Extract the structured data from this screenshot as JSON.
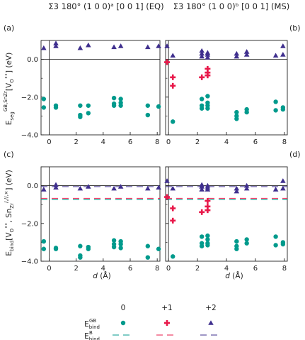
{
  "colors": {
    "teal": "#009a8c",
    "red": "#e8194a",
    "navy": "#3f2f8e",
    "axis": "#222222"
  },
  "column_titles": [
    "Σ3 180° (1 0 0)ᵃ [0 0 1] (EQ)",
    "Σ3 180° (1 0 0)ᵇ [0 0 1] (MS)"
  ],
  "panel_labels": [
    "(a)",
    "(b)",
    "(c)",
    "(d)"
  ],
  "legend": {
    "column_labels": [
      "0",
      "+1",
      "+2"
    ],
    "row_gb": "E_bind^GB",
    "row_b": "E_bind^B"
  },
  "chart_data": [
    {
      "id": "a",
      "type": "scatter",
      "xlabel": "",
      "ylabel": "E_seg^{GB,Sn_Zr}[V_O^••] (eV)",
      "xlim": [
        -0.6,
        8.2
      ],
      "ylim": [
        -4.0,
        1.0
      ],
      "xticks": [
        0,
        2,
        4,
        6,
        8
      ],
      "yticks": [
        0.0,
        -2.0,
        -4.0
      ],
      "ytick_labels": [
        "0.0",
        "−2.0",
        "−4.0"
      ],
      "zero_line": true,
      "series": [
        {
          "charge": "0",
          "points": [
            [
              -0.4,
              -2.1
            ],
            [
              -0.4,
              -2.55
            ],
            [
              0.5,
              -2.45
            ],
            [
              0.5,
              -2.55
            ],
            [
              2.3,
              -2.45
            ],
            [
              2.3,
              -2.95
            ],
            [
              2.3,
              -3.05
            ],
            [
              2.9,
              -2.45
            ],
            [
              2.9,
              -2.85
            ],
            [
              4.8,
              -2.05
            ],
            [
              4.8,
              -2.35
            ],
            [
              4.8,
              -2.45
            ],
            [
              5.3,
              -2.1
            ],
            [
              5.3,
              -2.3
            ],
            [
              5.3,
              -2.45
            ],
            [
              7.3,
              -2.45
            ],
            [
              7.3,
              -2.95
            ],
            [
              8.1,
              -2.5
            ]
          ]
        },
        {
          "charge": "+2",
          "points": [
            [
              -0.4,
              0.6
            ],
            [
              0.5,
              0.85
            ],
            [
              0.5,
              0.7
            ],
            [
              2.3,
              0.6
            ],
            [
              2.9,
              0.75
            ],
            [
              4.8,
              0.65
            ],
            [
              5.3,
              0.7
            ],
            [
              7.3,
              0.65
            ],
            [
              8.1,
              0.7
            ]
          ]
        }
      ],
      "bulk_lines": []
    },
    {
      "id": "b",
      "type": "scatter",
      "xlabel": "",
      "ylabel": "",
      "xlim": [
        -0.2,
        8.2
      ],
      "ylim": [
        -4.0,
        1.0
      ],
      "xticks": [
        0,
        2,
        4,
        6,
        8
      ],
      "yticks": [
        0.0,
        -2.0,
        -4.0
      ],
      "ytick_labels": [
        "",
        "",
        ""
      ],
      "zero_line": true,
      "series": [
        {
          "charge": "0",
          "points": [
            [
              0.3,
              -3.3
            ],
            [
              2.3,
              -2.1
            ],
            [
              2.3,
              -2.45
            ],
            [
              2.3,
              -2.6
            ],
            [
              2.7,
              -1.95
            ],
            [
              2.7,
              -2.3
            ],
            [
              2.7,
              -2.45
            ],
            [
              2.7,
              -2.6
            ],
            [
              4.7,
              -2.8
            ],
            [
              4.7,
              -3.0
            ],
            [
              4.7,
              -3.15
            ],
            [
              5.4,
              -2.65
            ],
            [
              5.4,
              -2.8
            ],
            [
              7.4,
              -2.25
            ],
            [
              7.4,
              -2.7
            ],
            [
              7.9,
              -2.55
            ],
            [
              7.9,
              -2.65
            ]
          ]
        },
        {
          "charge": "+1",
          "points": [
            [
              -0.1,
              -0.15
            ],
            [
              0.3,
              -0.95
            ],
            [
              0.3,
              -1.4
            ],
            [
              2.3,
              -0.95
            ],
            [
              2.7,
              -0.5
            ],
            [
              2.7,
              -0.7
            ],
            [
              2.7,
              -0.85
            ]
          ]
        },
        {
          "charge": "+2",
          "points": [
            [
              -0.1,
              0.7
            ],
            [
              0.3,
              0.2
            ],
            [
              2.3,
              0.15
            ],
            [
              2.3,
              0.3
            ],
            [
              2.3,
              0.45
            ],
            [
              2.7,
              0.1
            ],
            [
              2.7,
              0.25
            ],
            [
              2.7,
              0.35
            ],
            [
              4.7,
              0.15
            ],
            [
              4.7,
              0.3
            ],
            [
              5.4,
              0.25
            ],
            [
              5.4,
              0.4
            ],
            [
              7.4,
              0.2
            ],
            [
              7.9,
              0.25
            ],
            [
              7.9,
              0.7
            ]
          ]
        }
      ],
      "bulk_lines": []
    },
    {
      "id": "c",
      "type": "scatter",
      "xlabel": "d (Å)",
      "ylabel": "E_bind[V_O^••, Sn_Zr^{/,//,×}] (eV)",
      "xlim": [
        -0.6,
        8.2
      ],
      "ylim": [
        -4.0,
        1.0
      ],
      "xticks": [
        0,
        2,
        4,
        6,
        8
      ],
      "yticks": [
        0.0,
        -2.0,
        -4.0
      ],
      "ytick_labels": [
        "0.0",
        "−2.0",
        "−4.0"
      ],
      "zero_line": true,
      "series": [
        {
          "charge": "0",
          "points": [
            [
              -0.4,
              -2.95
            ],
            [
              -0.4,
              -3.35
            ],
            [
              0.5,
              -3.3
            ],
            [
              0.5,
              -3.35
            ],
            [
              2.3,
              -3.2
            ],
            [
              2.3,
              -3.7
            ],
            [
              2.3,
              -3.8
            ],
            [
              2.9,
              -3.25
            ],
            [
              2.9,
              -3.35
            ],
            [
              4.8,
              -2.9
            ],
            [
              4.8,
              -3.1
            ],
            [
              4.8,
              -3.25
            ],
            [
              5.3,
              -2.95
            ],
            [
              5.3,
              -3.1
            ],
            [
              5.3,
              -3.3
            ],
            [
              7.3,
              -3.2
            ],
            [
              7.3,
              -3.8
            ],
            [
              8.1,
              -3.35
            ]
          ]
        },
        {
          "charge": "+2",
          "points": [
            [
              -0.4,
              -0.2
            ],
            [
              0.5,
              0.05
            ],
            [
              0.5,
              -0.1
            ],
            [
              2.3,
              -0.15
            ],
            [
              2.9,
              -0.05
            ],
            [
              4.8,
              -0.15
            ],
            [
              5.3,
              -0.05
            ],
            [
              7.3,
              -0.15
            ],
            [
              8.1,
              -0.1
            ]
          ]
        }
      ],
      "bulk_lines": [
        {
          "charge": "0",
          "y": -0.75
        },
        {
          "charge": "+1",
          "y": -0.67
        },
        {
          "charge": "+2",
          "y": -0.05
        }
      ]
    },
    {
      "id": "d",
      "type": "scatter",
      "xlabel": "d (Å)",
      "ylabel": "",
      "xlim": [
        -0.2,
        8.2
      ],
      "ylim": [
        -4.0,
        1.0
      ],
      "xticks": [
        0,
        2,
        4,
        6,
        8
      ],
      "yticks": [
        0.0,
        -2.0,
        -4.0
      ],
      "ytick_labels": [
        "",
        "",
        ""
      ],
      "zero_line": true,
      "series": [
        {
          "charge": "0",
          "points": [
            [
              0.3,
              -3.75
            ],
            [
              2.3,
              -2.7
            ],
            [
              2.3,
              -3.05
            ],
            [
              2.3,
              -3.2
            ],
            [
              2.7,
              -2.65
            ],
            [
              2.7,
              -2.85
            ],
            [
              2.7,
              -3.05
            ],
            [
              2.7,
              -3.15
            ],
            [
              4.7,
              -2.95
            ],
            [
              4.7,
              -3.2
            ],
            [
              4.7,
              -3.35
            ],
            [
              5.4,
              -2.85
            ],
            [
              5.4,
              -3.05
            ],
            [
              7.4,
              -2.7
            ],
            [
              7.4,
              -3.15
            ],
            [
              7.9,
              -3.0
            ],
            [
              7.9,
              -3.1
            ]
          ]
        },
        {
          "charge": "+1",
          "points": [
            [
              -0.1,
              -0.6
            ],
            [
              0.3,
              -1.2
            ],
            [
              0.3,
              -1.85
            ],
            [
              2.3,
              -1.4
            ],
            [
              2.7,
              -0.8
            ],
            [
              2.7,
              -1.1
            ],
            [
              2.7,
              -1.3
            ]
          ]
        },
        {
          "charge": "+2",
          "points": [
            [
              -0.1,
              0.25
            ],
            [
              0.3,
              -0.15
            ],
            [
              2.3,
              -0.2
            ],
            [
              2.3,
              -0.05
            ],
            [
              2.3,
              0.05
            ],
            [
              2.7,
              -0.2
            ],
            [
              2.7,
              -0.1
            ],
            [
              2.7,
              0.0
            ],
            [
              4.7,
              -0.3
            ],
            [
              4.7,
              -0.15
            ],
            [
              5.4,
              -0.15
            ],
            [
              5.4,
              0.0
            ],
            [
              7.4,
              -0.2
            ],
            [
              7.9,
              -0.15
            ],
            [
              7.9,
              0.25
            ]
          ]
        }
      ],
      "bulk_lines": [
        {
          "charge": "0",
          "y": -0.75
        },
        {
          "charge": "+1",
          "y": -0.67
        },
        {
          "charge": "+2",
          "y": -0.05
        }
      ]
    }
  ]
}
